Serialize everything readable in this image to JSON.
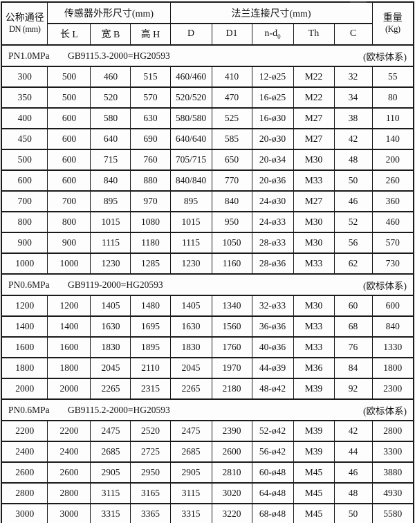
{
  "colors": {
    "border": "#1a1a1a",
    "text": "#121212",
    "background": "#fdfdfd"
  },
  "table": {
    "header": {
      "dn_title": "公称通径",
      "dn_subtitle": "DN (mm)",
      "sensor_group": "传感器外形尺寸(mm)",
      "flange_group": "法兰连接尺寸(mm)",
      "weight_title": "重量",
      "weight_subtitle": "(Kg)",
      "sub_columns": [
        {
          "label": "长 L",
          "sub": ""
        },
        {
          "label": "宽 B",
          "sub": ""
        },
        {
          "label": "高 H",
          "sub": ""
        },
        {
          "label": "D",
          "sub": ""
        },
        {
          "label": "D1",
          "sub": ""
        },
        {
          "label": "n-d",
          "sub": "0"
        },
        {
          "label": "Th",
          "sub": ""
        },
        {
          "label": "C",
          "sub": ""
        }
      ]
    },
    "sections": [
      {
        "pressure": "PN1.0MPa",
        "standard": "GB9115.3-2000=HG20593",
        "note": "(欧标体系)",
        "rows": [
          [
            "300",
            "500",
            "460",
            "515",
            "460/460",
            "410",
            "12-ø25",
            "M22",
            "32",
            "55"
          ],
          [
            "350",
            "500",
            "520",
            "570",
            "520/520",
            "470",
            "16-ø25",
            "M22",
            "34",
            "80"
          ],
          [
            "400",
            "600",
            "580",
            "630",
            "580/580",
            "525",
            "16-ø30",
            "M27",
            "38",
            "110"
          ],
          [
            "450",
            "600",
            "640",
            "690",
            "640/640",
            "585",
            "20-ø30",
            "M27",
            "42",
            "140"
          ],
          [
            "500",
            "600",
            "715",
            "760",
            "705/715",
            "650",
            "20-ø34",
            "M30",
            "48",
            "200"
          ],
          [
            "600",
            "600",
            "840",
            "880",
            "840/840",
            "770",
            "20-ø36",
            "M33",
            "50",
            "260"
          ],
          [
            "700",
            "700",
            "895",
            "970",
            "895",
            "840",
            "24-ø30",
            "M27",
            "46",
            "360"
          ],
          [
            "800",
            "800",
            "1015",
            "1080",
            "1015",
            "950",
            "24-ø33",
            "M30",
            "52",
            "460"
          ],
          [
            "900",
            "900",
            "1115",
            "1180",
            "1115",
            "1050",
            "28-ø33",
            "M30",
            "56",
            "570"
          ],
          [
            "1000",
            "1000",
            "1230",
            "1285",
            "1230",
            "1160",
            "28-ø36",
            "M33",
            "62",
            "730"
          ]
        ]
      },
      {
        "pressure": "PN0.6MPa",
        "standard": "GB9119-2000=HG20593",
        "note": "(欧标体系)",
        "rows": [
          [
            "1200",
            "1200",
            "1405",
            "1480",
            "1405",
            "1340",
            "32-ø33",
            "M30",
            "60",
            "600"
          ],
          [
            "1400",
            "1400",
            "1630",
            "1695",
            "1630",
            "1560",
            "36-ø36",
            "M33",
            "68",
            "840"
          ],
          [
            "1600",
            "1600",
            "1830",
            "1895",
            "1830",
            "1760",
            "40-ø36",
            "M33",
            "76",
            "1330"
          ],
          [
            "1800",
            "1800",
            "2045",
            "2110",
            "2045",
            "1970",
            "44-ø39",
            "M36",
            "84",
            "1800"
          ],
          [
            "2000",
            "2000",
            "2265",
            "2315",
            "2265",
            "2180",
            "48-ø42",
            "M39",
            "92",
            "2300"
          ]
        ]
      },
      {
        "pressure": "PN0.6MPa",
        "standard": "GB9115.2-2000=HG20593",
        "note": "(欧标体系)",
        "rows": [
          [
            "2200",
            "2200",
            "2475",
            "2520",
            "2475",
            "2390",
            "52-ø42",
            "M39",
            "42",
            "2800"
          ],
          [
            "2400",
            "2400",
            "2685",
            "2725",
            "2685",
            "2600",
            "56-ø42",
            "M39",
            "44",
            "3300"
          ],
          [
            "2600",
            "2600",
            "2905",
            "2950",
            "2905",
            "2810",
            "60-ø48",
            "M45",
            "46",
            "3880"
          ],
          [
            "2800",
            "2800",
            "3115",
            "3165",
            "3115",
            "3020",
            "64-ø48",
            "M45",
            "48",
            "4930"
          ],
          [
            "3000",
            "3000",
            "3315",
            "3365",
            "3315",
            "3220",
            "68-ø48",
            "M45",
            "50",
            "5580"
          ]
        ]
      }
    ]
  }
}
